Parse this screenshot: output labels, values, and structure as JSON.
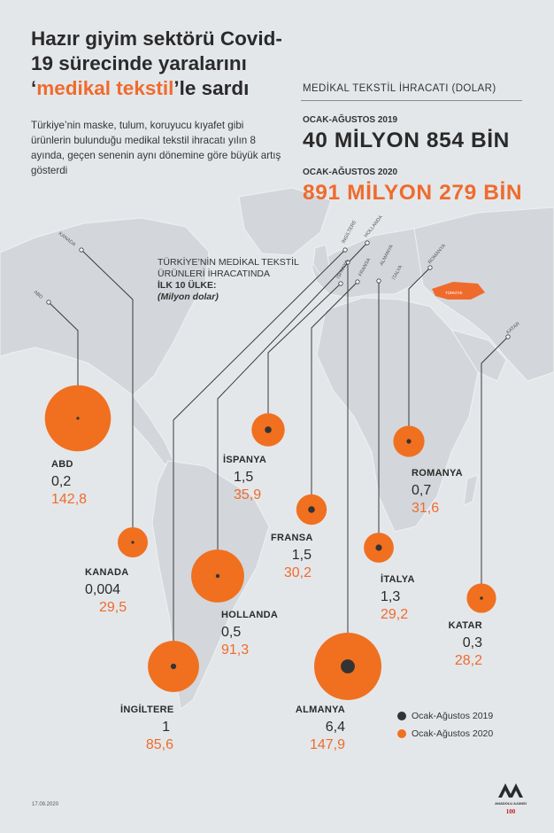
{
  "title": {
    "part1": "Hazır giyim sektörü Covid-19 sürecinde yaralarını ‘",
    "highlight": "medikal tekstil",
    "part2": "’le sardı"
  },
  "intro": "Türkiye’nin maske, tulum, koruyucu kıyafet gibi ürünlerin bulunduğu medikal tekstil ihracatı yılın 8 ayında, geçen senenin aynı dönemine göre büyük artış gösterdi",
  "stats": {
    "label": "MEDİKAL TEKSTİL İHRACATI  (DOLAR)",
    "period1": "OCAK-AĞUSTOS 2019",
    "value1": "40 MİLYON 854 BİN",
    "period2": "OCAK-AĞUSTOS 2020",
    "value2": "891 MİLYON 279 BİN"
  },
  "top10": {
    "line1": "TÜRKİYE’NİN MEDİKAL TEKSTİL",
    "line2": "ÜRÜNLERİ İHRACATINDA",
    "line3": "İLK 10 ÜLKE:",
    "unit": "(Milyon dolar)"
  },
  "map_labels": {
    "abd": "ABD",
    "kanada": "KANADA",
    "ingiltere": "İNGİLTERE",
    "hollanda": "HOLLANDA",
    "ispanya": "İSPANYA",
    "fransa": "FRANSA",
    "almanya": "ALMANYA",
    "italya": "İTALYA",
    "romanya": "ROMANYA",
    "katar": "KATAR",
    "turkiye": "TÜRKİYE"
  },
  "chart_data": {
    "type": "bubble",
    "title": "Türkiye’nin medikal tekstil ürünleri ihracatında ilk 10 ülke",
    "unit": "Milyon dolar",
    "series": [
      {
        "name": "Ocak-Ağustos 2019",
        "color": "#333333"
      },
      {
        "name": "Ocak-Ağustos 2020",
        "color": "#f07020"
      }
    ],
    "countries": [
      {
        "name": "ABD",
        "v2019": "0,2",
        "v2020": "142,8"
      },
      {
        "name": "KANADA",
        "v2019": "0,004",
        "v2020": "29,5"
      },
      {
        "name": "İNGİLTERE",
        "v2019": "1",
        "v2020": "85,6"
      },
      {
        "name": "HOLLANDA",
        "v2019": "0,5",
        "v2020": "91,3"
      },
      {
        "name": "İSPANYA",
        "v2019": "1,5",
        "v2020": "35,9"
      },
      {
        "name": "FRANSA",
        "v2019": "1,5",
        "v2020": "30,2"
      },
      {
        "name": "ALMANYA",
        "v2019": "6,4",
        "v2020": "147,9"
      },
      {
        "name": "İTALYA",
        "v2019": "1,3",
        "v2020": "29,2"
      },
      {
        "name": "ROMANYA",
        "v2019": "0,7",
        "v2020": "31,6"
      },
      {
        "name": "KATAR",
        "v2019": "0,3",
        "v2020": "28,2"
      }
    ]
  },
  "legend": {
    "item2019": "Ocak-Ağustos 2019",
    "item2020": "Ocak-Ağustos 2020"
  },
  "footer": {
    "date": "17.09.2020",
    "logo_text": "ANADOLU AJANSI",
    "anniv": "100"
  },
  "colors": {
    "accent": "#ef6b2d",
    "bubble": "#f07020",
    "dark": "#333333"
  }
}
